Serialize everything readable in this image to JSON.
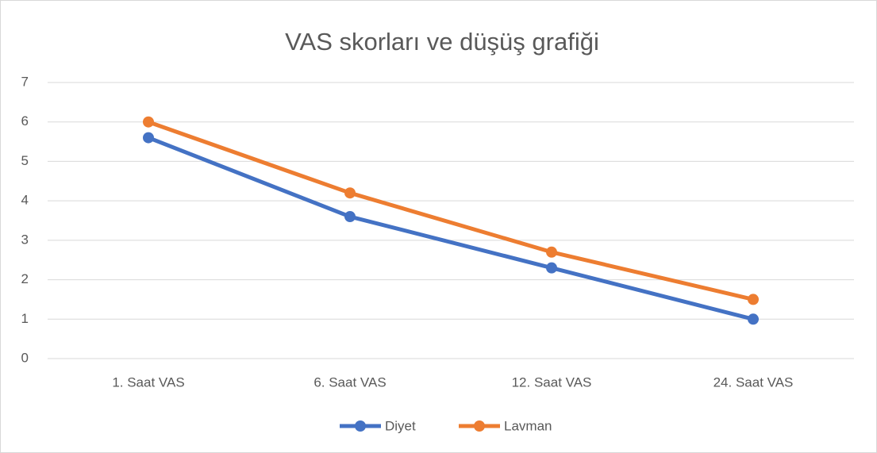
{
  "chart_data": {
    "type": "line",
    "title": "VAS skorları ve düşüş grafiği",
    "categories": [
      "1. Saat VAS",
      "6. Saat VAS",
      "12. Saat VAS",
      "24. Saat VAS"
    ],
    "series": [
      {
        "name": "Diyet",
        "color": "#4472c4",
        "values": [
          5.6,
          3.6,
          2.3,
          1.0
        ]
      },
      {
        "name": "Lavman",
        "color": "#ed7d31",
        "values": [
          6.0,
          4.2,
          2.7,
          1.5
        ]
      }
    ],
    "ylim": [
      0,
      7
    ],
    "yticks": [
      0,
      1,
      2,
      3,
      4,
      5,
      6,
      7
    ],
    "grid": true,
    "legend": "bottom"
  }
}
